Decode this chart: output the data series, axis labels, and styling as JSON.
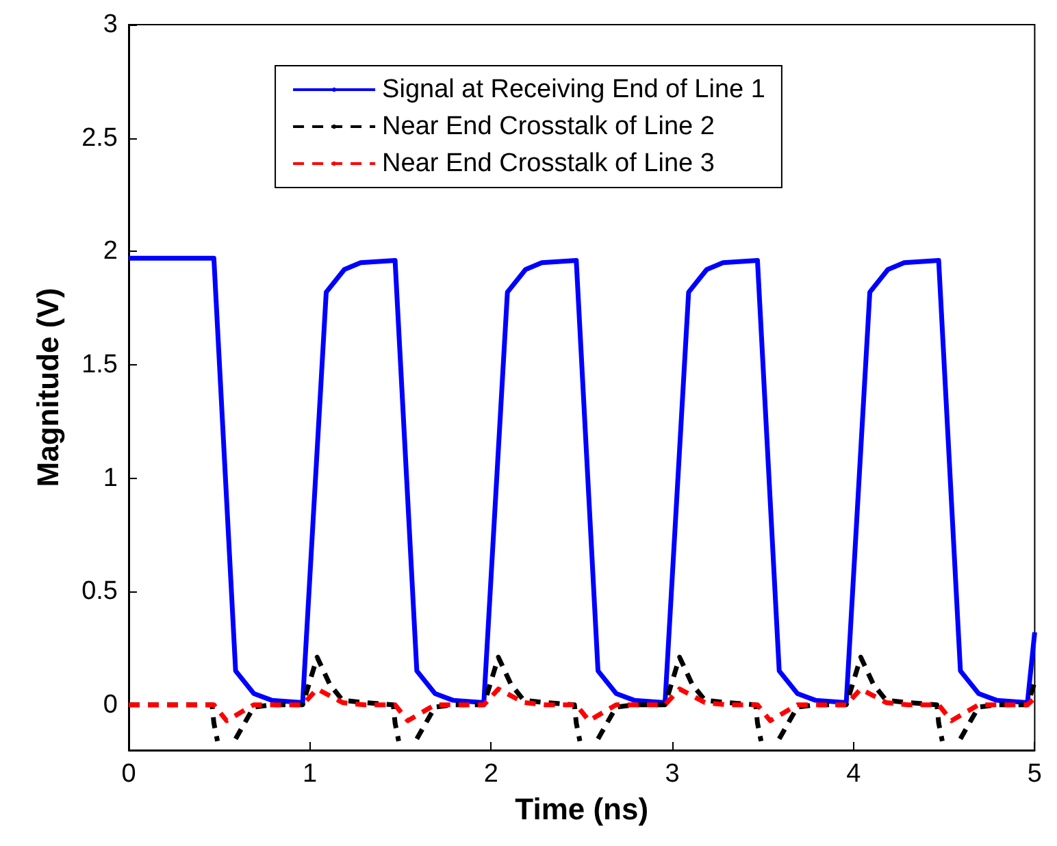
{
  "chart_data": {
    "type": "line",
    "xlabel": "Time (ns)",
    "ylabel": "Magnitude (V)",
    "xlim": [
      0,
      5
    ],
    "xticks": [
      0,
      1,
      2,
      3,
      4,
      5
    ],
    "ylim": [
      -0.2,
      3
    ],
    "yticks": [
      0,
      0.5,
      1,
      1.5,
      2,
      2.5,
      3
    ],
    "grid": false,
    "legend": "top",
    "marker": "none",
    "series": [
      {
        "name": "Signal at Receiving End of Line 1",
        "color": "#0000ff",
        "line_style": "solid",
        "x": [
          0,
          0.47,
          0.59,
          0.69,
          0.79,
          0.96,
          1.09,
          1.19,
          1.28,
          1.47,
          1.59,
          1.69,
          1.79,
          1.96,
          2.09,
          2.19,
          2.28,
          2.47,
          2.59,
          2.69,
          2.79,
          2.96,
          3.09,
          3.19,
          3.28,
          3.47,
          3.59,
          3.69,
          3.79,
          3.96,
          4.09,
          4.19,
          4.28,
          4.47,
          4.59,
          4.69,
          4.79,
          4.96,
          5
        ],
        "values": [
          1.97,
          1.97,
          0.15,
          0.05,
          0.02,
          0.01,
          1.82,
          1.92,
          1.95,
          1.96,
          0.15,
          0.05,
          0.02,
          0.01,
          1.82,
          1.92,
          1.95,
          1.96,
          0.15,
          0.05,
          0.02,
          0.01,
          1.82,
          1.92,
          1.95,
          1.96,
          0.15,
          0.05,
          0.02,
          0.01,
          1.82,
          1.92,
          1.95,
          1.96,
          0.15,
          0.05,
          0.02,
          0.01,
          0.32
        ]
      },
      {
        "name": "Near End Crosstalk of Line 2",
        "color": "#000000",
        "line_style": "dashed",
        "x": [
          0,
          0.46,
          0.47,
          0.49,
          0.53,
          0.59,
          0.69,
          0.79,
          0.96,
          1.04,
          1.11,
          1.18,
          1.3,
          1.46,
          1.47,
          1.49,
          1.53,
          1.59,
          1.69,
          1.79,
          1.96,
          2.04,
          2.11,
          2.18,
          2.3,
          2.46,
          2.47,
          2.49,
          2.53,
          2.59,
          2.69,
          2.79,
          2.96,
          3.04,
          3.11,
          3.18,
          3.3,
          3.46,
          3.47,
          3.49,
          3.53,
          3.59,
          3.69,
          3.79,
          3.96,
          4.04,
          4.11,
          4.18,
          4.3,
          4.46,
          4.47,
          4.49,
          4.53,
          4.59,
          4.69,
          4.79,
          4.96,
          5
        ],
        "values": [
          0,
          0,
          -0.08,
          -0.16,
          null,
          -0.15,
          -0.01,
          0,
          0,
          0.21,
          0.09,
          0.02,
          0.01,
          0,
          -0.08,
          -0.16,
          null,
          -0.15,
          -0.01,
          0,
          0,
          0.21,
          0.09,
          0.02,
          0.01,
          0,
          -0.08,
          -0.16,
          null,
          -0.15,
          -0.01,
          0,
          0,
          0.21,
          0.09,
          0.02,
          0.01,
          0,
          -0.08,
          -0.16,
          null,
          -0.15,
          -0.01,
          0,
          0,
          0.21,
          0.09,
          0.02,
          0.01,
          0,
          -0.08,
          -0.16,
          null,
          -0.15,
          -0.01,
          0,
          0,
          0.1
        ]
      },
      {
        "name": "Near End Crosstalk of Line 3",
        "color": "#ff0000",
        "line_style": "dashed",
        "x": [
          0,
          0.47,
          0.54,
          0.69,
          0.96,
          1.04,
          1.18,
          1.3,
          1.47,
          1.54,
          1.69,
          1.96,
          2.04,
          2.18,
          2.3,
          2.47,
          2.54,
          2.69,
          2.96,
          3.04,
          3.18,
          3.3,
          3.47,
          3.54,
          3.69,
          3.96,
          4.04,
          4.18,
          4.3,
          4.47,
          4.54,
          4.69,
          4.96,
          5
        ],
        "values": [
          0,
          0,
          -0.07,
          0,
          0,
          0.07,
          0.01,
          0,
          0,
          -0.07,
          0,
          0,
          0.07,
          0.01,
          0,
          0,
          -0.07,
          0,
          0,
          0.07,
          0.01,
          0,
          0,
          -0.07,
          0,
          0,
          0.07,
          0.01,
          0,
          0,
          -0.07,
          0,
          0,
          0.03
        ]
      }
    ]
  }
}
